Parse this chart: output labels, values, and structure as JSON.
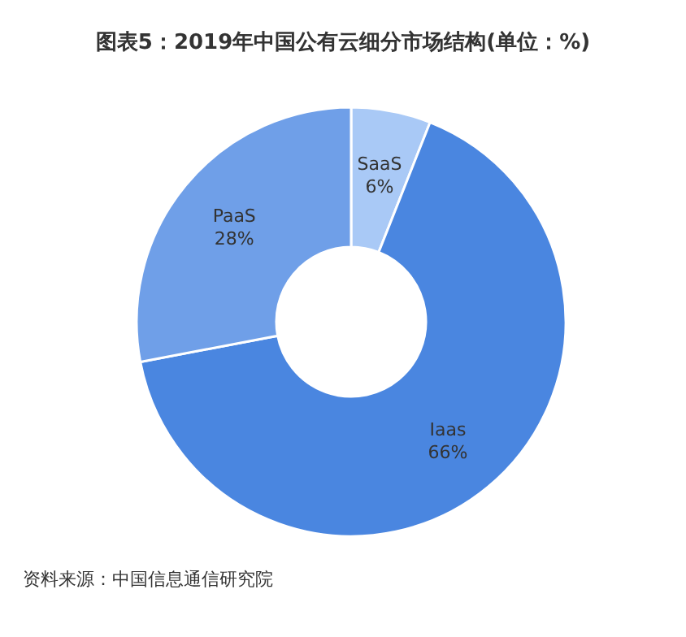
{
  "chart_data": {
    "type": "donut",
    "title": "图表5：2019年中国公有云细分市场结构(单位：%)",
    "categories": [
      "SaaS",
      "Iaas",
      "PaaS"
    ],
    "values": [
      6,
      66,
      28
    ],
    "value_labels": [
      "6%",
      "66%",
      "28%"
    ],
    "colors": [
      "#a9c9f6",
      "#4a86e0",
      "#6f9fe8"
    ],
    "annotations": [
      "资料来源：中国信息通信研究院"
    ]
  }
}
